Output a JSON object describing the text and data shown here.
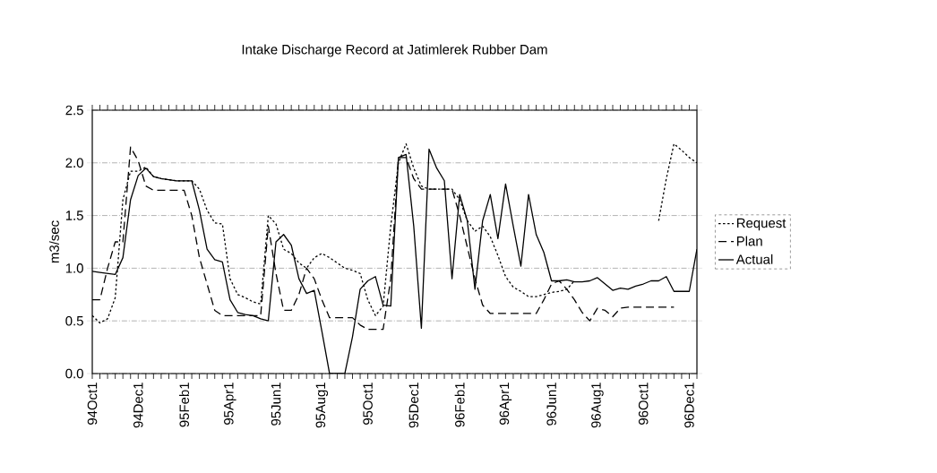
{
  "chart_data": {
    "type": "line",
    "title": "Intake Discharge Record at Jatimlerek Rubber Dam",
    "ylabel": "m3/sec",
    "categories": [
      "94Oct1",
      null,
      null,
      null,
      null,
      null,
      "94Dec1",
      null,
      null,
      null,
      null,
      null,
      "95Feb1",
      null,
      null,
      null,
      null,
      null,
      "95Apr1",
      null,
      null,
      null,
      null,
      null,
      "95Jun1",
      null,
      null,
      null,
      null,
      null,
      "95Aug1",
      null,
      null,
      null,
      null,
      null,
      "95Oct1",
      null,
      null,
      null,
      null,
      null,
      "95Dec1",
      null,
      null,
      null,
      null,
      null,
      "96Feb1",
      null,
      null,
      null,
      null,
      null,
      "96Apr1",
      null,
      null,
      null,
      null,
      null,
      "96Jun1",
      null,
      null,
      null,
      null,
      null,
      "96Aug1",
      null,
      null,
      null,
      null,
      null,
      "96Oct1",
      null,
      null,
      null,
      null,
      null,
      "96Dec1",
      null
    ],
    "ylim": [
      0,
      2.5
    ],
    "yticks": [
      {
        "value": 0,
        "label": "0.0"
      },
      0.5,
      {
        "value": 1,
        "label": "1.0"
      },
      1.5,
      {
        "value": 2,
        "label": "2.0"
      },
      2.5
    ],
    "grid": "y",
    "legend": "right",
    "series": [
      {
        "name": "Request",
        "color": "#000000",
        "line_style": "dotted",
        "values": [
          0.55,
          0.48,
          0.52,
          0.72,
          1.65,
          1.92,
          1.92,
          1.96,
          1.87,
          1.85,
          1.84,
          1.83,
          1.83,
          1.83,
          1.75,
          1.55,
          1.43,
          1.42,
          0.9,
          0.75,
          0.72,
          0.68,
          0.66,
          1.5,
          1.42,
          1.18,
          1.14,
          1.05,
          1.0,
          1.1,
          1.14,
          1.1,
          1.05,
          1.0,
          0.98,
          0.95,
          0.7,
          0.55,
          0.64,
          1.4,
          2.0,
          2.18,
          1.95,
          1.78,
          1.75,
          1.75,
          1.75,
          1.75,
          1.65,
          1.45,
          1.35,
          1.4,
          1.3,
          1.12,
          0.92,
          0.82,
          0.78,
          0.73,
          0.73,
          0.75,
          0.77,
          0.78,
          0.8,
          0.88,
          null,
          null,
          null,
          null,
          null,
          null,
          null,
          null,
          null,
          null,
          1.45,
          1.85,
          2.18,
          2.12,
          2.05,
          2.0
        ]
      },
      {
        "name": "Plan",
        "color": "#000000",
        "line_style": "dashed",
        "values": [
          0.7,
          0.7,
          1.0,
          1.25,
          1.25,
          2.15,
          2.02,
          1.78,
          1.74,
          1.74,
          1.74,
          1.74,
          1.74,
          1.5,
          1.1,
          0.85,
          0.6,
          0.55,
          0.55,
          0.55,
          0.55,
          0.55,
          0.55,
          1.4,
          0.95,
          0.6,
          0.6,
          0.75,
          1.0,
          0.9,
          0.7,
          0.53,
          0.53,
          0.53,
          0.53,
          0.46,
          0.42,
          0.42,
          0.42,
          0.9,
          2.05,
          2.05,
          1.85,
          1.75,
          1.75,
          1.75,
          1.75,
          1.75,
          1.5,
          1.2,
          0.9,
          0.65,
          0.57,
          0.57,
          0.57,
          0.57,
          0.57,
          0.57,
          0.57,
          0.7,
          0.85,
          0.88,
          0.8,
          0.7,
          0.58,
          0.5,
          0.62,
          0.6,
          0.54,
          0.62,
          0.63,
          0.63,
          0.63,
          0.63,
          0.63,
          0.63,
          0.63,
          null,
          null,
          null
        ]
      },
      {
        "name": "Actual",
        "color": "#000000",
        "line_style": "solid",
        "values": [
          0.97,
          0.96,
          0.95,
          0.94,
          1.1,
          1.65,
          1.88,
          1.95,
          1.87,
          1.85,
          1.84,
          1.83,
          1.83,
          1.83,
          1.55,
          1.18,
          1.08,
          1.06,
          0.7,
          0.58,
          0.56,
          0.55,
          0.52,
          0.5,
          1.25,
          1.32,
          1.22,
          0.9,
          0.76,
          0.79,
          0.4,
          0,
          0,
          0,
          0.35,
          0.8,
          0.88,
          0.92,
          0.65,
          0.64,
          2.05,
          2.08,
          1.4,
          0.43,
          2.13,
          1.95,
          1.83,
          0.9,
          1.7,
          1.45,
          0.8,
          1.45,
          1.7,
          1.28,
          1.8,
          1.4,
          1.02,
          1.7,
          1.32,
          1.15,
          0.88,
          0.88,
          0.89,
          0.87,
          0.87,
          0.88,
          0.91,
          0.85,
          0.79,
          0.81,
          0.8,
          0.83,
          0.85,
          0.88,
          0.88,
          0.92,
          0.78,
          0.78,
          0.78,
          1.18
        ]
      }
    ]
  }
}
